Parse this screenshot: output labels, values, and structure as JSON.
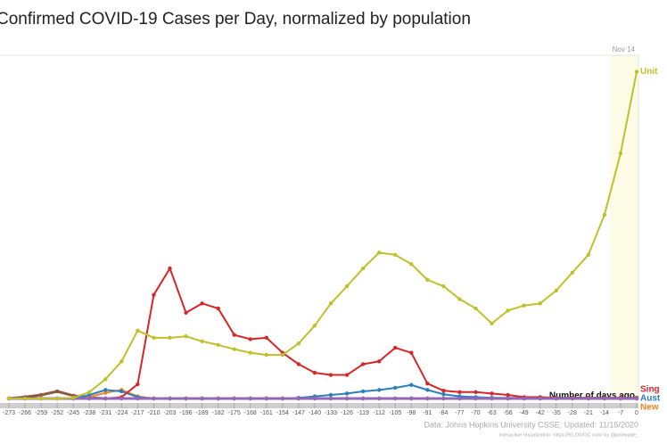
{
  "chart_data": {
    "type": "line",
    "title": "Confirmed COVID-19 Cases per Day, normalized by population",
    "annotation": "Nov 14",
    "x_label": "Number of days ago",
    "source": "Data: Johns Hopkins University CSSE; Updated: 11/15/2020",
    "credit": "Interactive Visualization: https://91-DIVOC.com/ by @profwade_",
    "x": [
      -273,
      -266,
      -259,
      -252,
      -245,
      -238,
      -231,
      -224,
      -217,
      -210,
      -203,
      -196,
      -189,
      -182,
      -175,
      -168,
      -161,
      -154,
      -147,
      -140,
      -133,
      -126,
      -119,
      -112,
      -105,
      -98,
      -91,
      -84,
      -77,
      -70,
      -63,
      -56,
      -49,
      -42,
      -35,
      -28,
      -21,
      -14,
      -7,
      0
    ],
    "xlim": [
      -273,
      0
    ],
    "xticks": [
      -273,
      -266,
      -259,
      -252,
      -245,
      -238,
      -231,
      -224,
      -217,
      -210,
      -203,
      -196,
      -189,
      -182,
      -175,
      -168,
      -161,
      -154,
      -147,
      -140,
      -133,
      -126,
      -119,
      -112,
      -105,
      -98,
      -91,
      -84,
      -77,
      -70,
      -63,
      -56,
      -49,
      -42,
      -35,
      -28,
      -21,
      -14,
      -7,
      0
    ],
    "ylim": [
      0,
      480
    ],
    "series": [
      {
        "color": "#8d5a3b",
        "values": [
          0,
          2,
          5,
          10,
          4,
          1,
          0,
          0,
          0,
          0,
          0,
          0,
          0,
          0,
          0,
          0,
          0,
          0,
          0,
          0,
          0,
          0,
          0,
          0,
          0,
          0,
          0,
          0,
          0,
          0,
          0,
          0,
          0,
          0,
          0,
          0,
          0,
          0,
          0,
          0
        ]
      },
      {
        "name": "New",
        "color": "#f58220",
        "values": [
          0,
          0,
          0,
          0,
          0,
          2,
          8,
          12,
          3,
          0,
          0,
          0,
          0,
          0,
          0,
          0,
          0,
          0,
          0,
          0,
          0,
          0,
          0,
          0,
          0,
          0,
          0,
          0,
          0,
          0,
          0,
          0,
          0,
          0,
          0,
          0,
          0,
          0,
          0,
          0
        ]
      },
      {
        "name": "Aust",
        "color": "#2a7fc0",
        "values": [
          0,
          0,
          0,
          0,
          0,
          5,
          12,
          10,
          2,
          0,
          0,
          0,
          0,
          0,
          0,
          0,
          0,
          0,
          1,
          3,
          5,
          7,
          10,
          12,
          15,
          19,
          12,
          6,
          3,
          2,
          1,
          1,
          1,
          1,
          1,
          1,
          1,
          1,
          1,
          1
        ]
      },
      {
        "name": "Sing",
        "color": "#d62728",
        "values": [
          0,
          0,
          0,
          0,
          0,
          0,
          0,
          2,
          20,
          145,
          182,
          120,
          133,
          126,
          89,
          83,
          85,
          64,
          48,
          36,
          33,
          33,
          48,
          52,
          71,
          64,
          21,
          11,
          9,
          9,
          7,
          5,
          2,
          2,
          1,
          1,
          1,
          1,
          1,
          1
        ]
      },
      {
        "color": "#9467bd",
        "values": [
          0,
          0,
          0,
          0,
          0,
          0,
          0,
          0,
          0,
          0,
          0,
          0,
          0,
          0,
          0,
          0,
          0,
          0,
          0,
          0,
          0,
          0,
          0,
          0,
          0,
          0,
          0,
          0,
          0,
          0,
          0,
          0,
          0,
          0,
          0,
          0,
          0,
          0,
          0,
          0
        ]
      },
      {
        "name": "Unit",
        "color": "#bfc12b",
        "values": [
          0,
          0,
          0,
          0,
          1,
          9,
          27,
          52,
          95,
          85,
          85,
          87,
          80,
          75,
          69,
          64,
          61,
          61,
          77,
          102,
          133,
          157,
          182,
          204,
          201,
          188,
          166,
          157,
          139,
          126,
          105,
          123,
          130,
          133,
          151,
          176,
          201,
          257,
          343,
          457
        ]
      }
    ]
  }
}
